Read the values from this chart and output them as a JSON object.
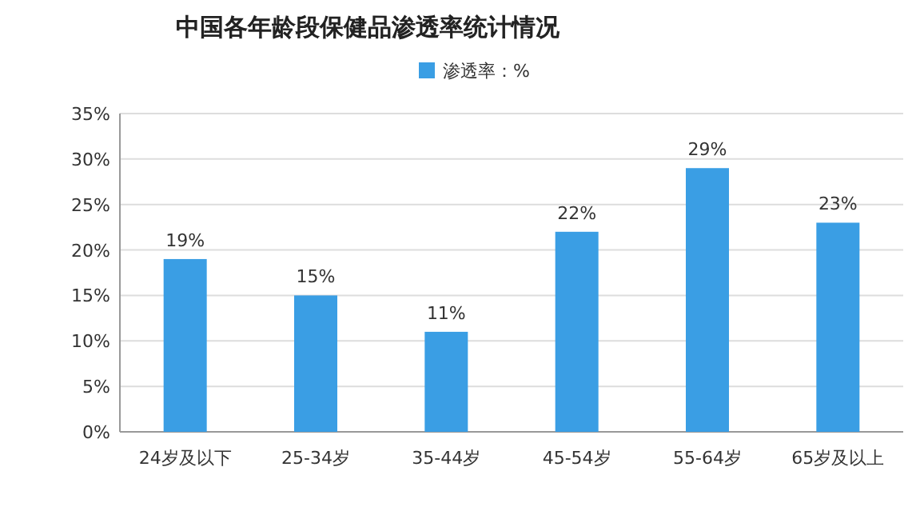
{
  "chart_data": {
    "type": "bar",
    "title": "中国各年龄段保健品渗透率统计情况",
    "categories": [
      "24岁及以下",
      "25-34岁",
      "35-44岁",
      "45-54岁",
      "55-64岁",
      "65岁及以上"
    ],
    "series": [
      {
        "name": "渗透率：%",
        "color": "#3a9ee4",
        "values": [
          19,
          15,
          11,
          22,
          29,
          23
        ],
        "value_labels": [
          "19%",
          "15%",
          "11%",
          "22%",
          "29%",
          "23%"
        ]
      }
    ],
    "ylim": [
      0,
      35
    ],
    "yticks": [
      {
        "value": 0,
        "label": "0%"
      },
      {
        "value": 5,
        "label": "5%"
      },
      {
        "value": 10,
        "label": "10%"
      },
      {
        "value": 15,
        "label": "15%"
      },
      {
        "value": 20,
        "label": "20%"
      },
      {
        "value": 25,
        "label": "25%"
      },
      {
        "value": 30,
        "label": "30%"
      },
      {
        "value": 35,
        "label": "35%"
      }
    ],
    "grid": "y",
    "legend": "top"
  }
}
